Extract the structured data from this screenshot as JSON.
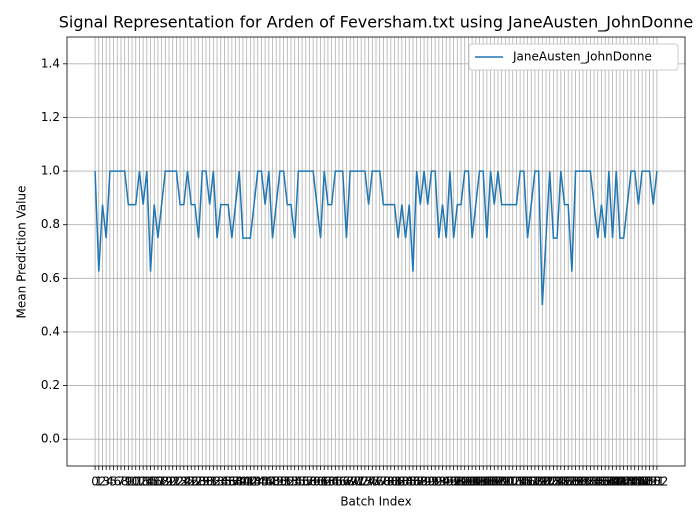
{
  "chart_data": {
    "type": "line",
    "title": "Signal Representation for Arden of Feversham.txt using JaneAusten_JohnDonne",
    "xlabel": "Batch Index",
    "ylabel": "Mean Prediction Value",
    "x": [
      0,
      1,
      2,
      3,
      4,
      5,
      6,
      7,
      8,
      9,
      10,
      11,
      12,
      13,
      14,
      15,
      16,
      17,
      18,
      19,
      20,
      21,
      22,
      23,
      24,
      25,
      26,
      27,
      28,
      29,
      30,
      31,
      32,
      33,
      34,
      35,
      36,
      37,
      38,
      39,
      40,
      41,
      42,
      43,
      44,
      45,
      46,
      47,
      48,
      49,
      50,
      51,
      52,
      53,
      54,
      55,
      56,
      57,
      58,
      59,
      60,
      61,
      62,
      63,
      64,
      65,
      66,
      67,
      68,
      69,
      70,
      71,
      72,
      73,
      74,
      75,
      76,
      77,
      78,
      79,
      80,
      81,
      82,
      83,
      84,
      85,
      86,
      87,
      88,
      89,
      90,
      91,
      92,
      93,
      94,
      95,
      96,
      97,
      98,
      99,
      100,
      101,
      102,
      103,
      104,
      105,
      106,
      107,
      108,
      109,
      110,
      111,
      112,
      113,
      114,
      115,
      116,
      117,
      118,
      119,
      120,
      121,
      122,
      123,
      124,
      125,
      126,
      127,
      128,
      129,
      130,
      131,
      132,
      133,
      134,
      135,
      136,
      137,
      138,
      139,
      140,
      141,
      142,
      143,
      144,
      145,
      146,
      147,
      148,
      149,
      150,
      151,
      152
    ],
    "series": [
      {
        "name": "JaneAusten_JohnDonne",
        "color": "#1f77b4",
        "values": [
          1,
          0.625,
          0.875,
          0.75,
          1,
          1,
          1,
          1,
          1,
          0.875,
          0.875,
          0.875,
          1,
          0.875,
          1,
          0.625,
          0.875,
          0.75,
          0.875,
          1,
          1,
          1,
          1,
          0.875,
          0.875,
          1,
          0.875,
          0.875,
          0.75,
          1,
          1,
          0.875,
          1,
          0.75,
          0.875,
          0.875,
          0.875,
          0.75,
          0.875,
          1,
          0.75,
          0.75,
          0.75,
          0.875,
          1,
          1,
          0.875,
          1,
          0.75,
          0.875,
          1,
          1,
          0.875,
          0.875,
          0.75,
          1,
          1,
          1,
          1,
          1,
          0.875,
          0.75,
          1,
          0.875,
          0.875,
          1,
          1,
          1,
          0.75,
          1,
          1,
          1,
          1,
          1,
          0.875,
          1,
          1,
          1,
          0.875,
          0.875,
          0.875,
          0.875,
          0.75,
          0.875,
          0.75,
          0.875,
          0.625,
          1,
          0.875,
          1,
          0.875,
          1,
          1,
          0.75,
          0.875,
          0.75,
          1,
          0.75,
          0.875,
          0.875,
          1,
          1,
          0.75,
          0.875,
          1,
          1,
          0.75,
          1,
          0.875,
          1,
          0.875,
          0.875,
          0.875,
          0.875,
          0.875,
          1,
          1,
          0.75,
          0.875,
          1,
          1,
          0.5,
          0.75,
          1,
          0.75,
          0.75,
          1,
          0.875,
          0.875,
          0.625,
          1,
          1,
          1,
          1,
          1,
          0.875,
          0.75,
          0.875,
          0.75,
          1,
          0.75,
          1,
          0.75,
          0.75,
          0.875,
          1,
          1,
          0.875,
          1,
          1,
          1,
          0.875,
          1
        ]
      }
    ],
    "xlim": [
      -7.6,
      159.6
    ],
    "ylim": [
      -0.1,
      1.5
    ],
    "xticks": [
      0,
      1,
      2,
      3,
      4,
      5,
      6,
      7,
      8,
      9,
      10,
      11,
      12,
      13,
      14,
      15,
      16,
      17,
      18,
      19,
      20,
      21,
      22,
      23,
      24,
      25,
      26,
      27,
      28,
      29,
      30,
      31,
      32,
      33,
      34,
      35,
      36,
      37,
      38,
      39,
      40,
      41,
      42,
      43,
      44,
      45,
      46,
      47,
      48,
      49,
      50,
      51,
      52,
      53,
      54,
      55,
      56,
      57,
      58,
      59,
      60,
      61,
      62,
      63,
      64,
      65,
      66,
      67,
      68,
      69,
      70,
      71,
      72,
      73,
      74,
      75,
      76,
      77,
      78,
      79,
      80,
      81,
      82,
      83,
      84,
      85,
      86,
      87,
      88,
      89,
      90,
      91,
      92,
      93,
      94,
      95,
      96,
      97,
      98,
      99,
      100,
      101,
      102,
      103,
      104,
      105,
      106,
      107,
      108,
      109,
      110,
      111,
      112,
      113,
      114,
      115,
      116,
      117,
      118,
      119,
      120,
      121,
      122,
      123,
      124,
      125,
      126,
      127,
      128,
      129,
      130,
      131,
      132,
      133,
      134,
      135,
      136,
      137,
      138,
      139,
      140,
      141,
      142,
      143,
      144,
      145,
      146,
      147,
      148,
      149,
      150,
      151,
      152
    ],
    "yticks": [
      {
        "value": 0,
        "label": "0.0"
      },
      0.2,
      0.4,
      0.6,
      0.8,
      {
        "value": 1,
        "label": "1.0"
      },
      1.2,
      1.4
    ],
    "grid": true,
    "legend": "upper right"
  }
}
